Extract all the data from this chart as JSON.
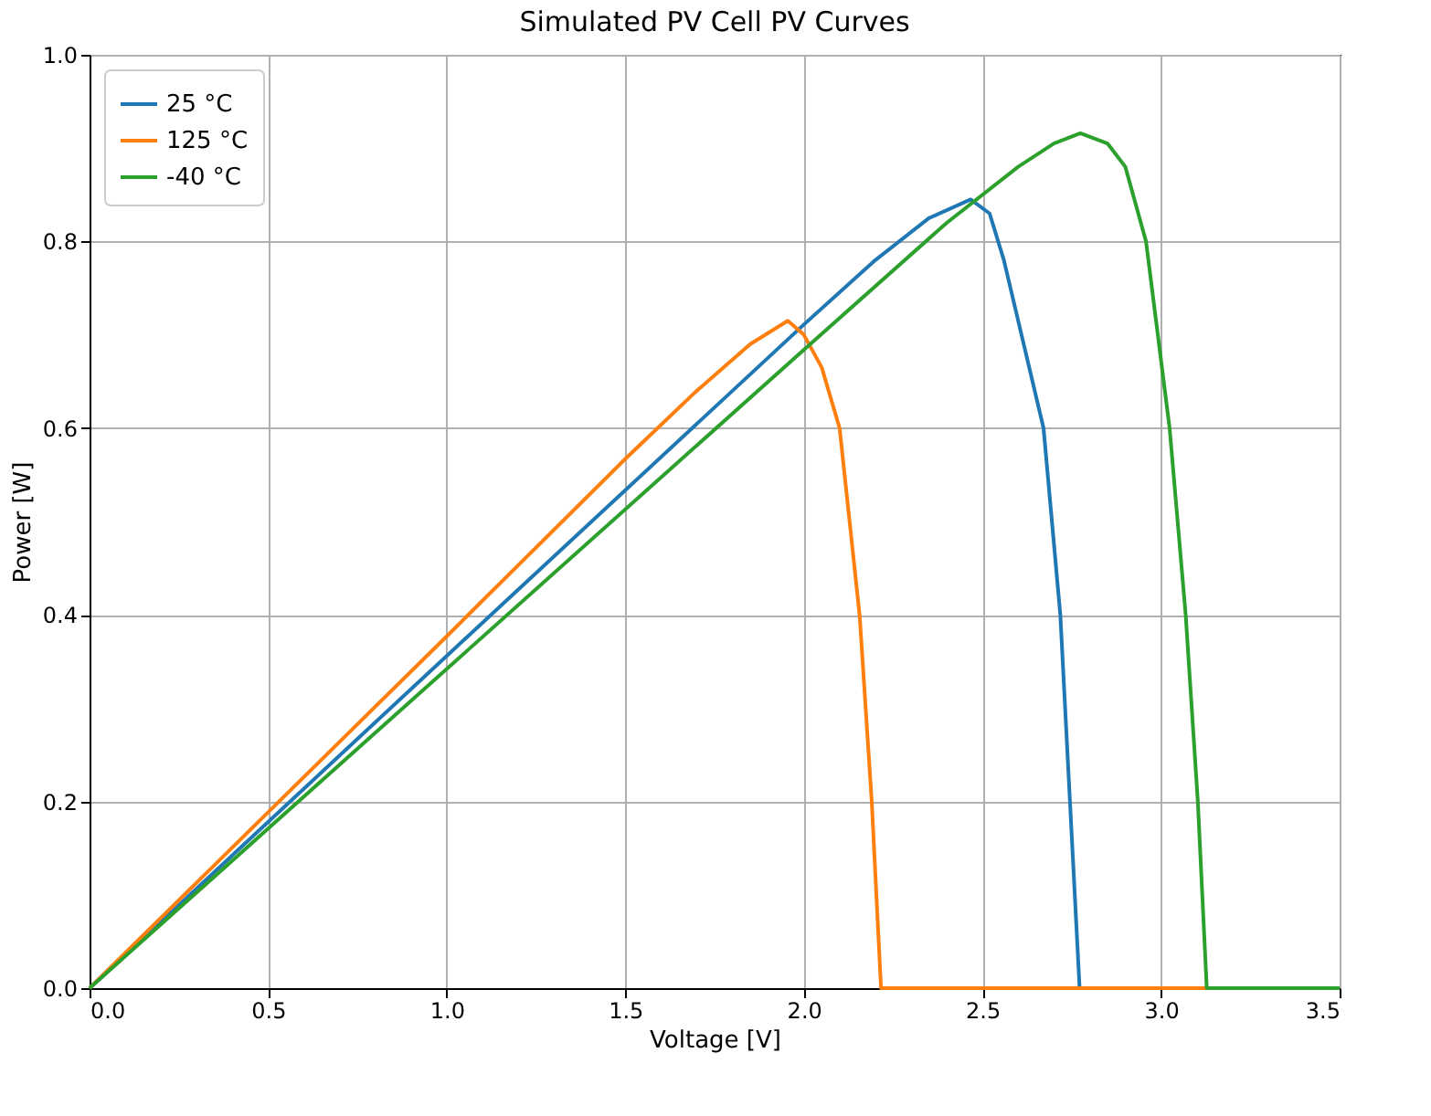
{
  "chart_data": {
    "type": "line",
    "title": "Simulated PV Cell PV Curves",
    "xlabel": "Voltage [V]",
    "ylabel": "Power [W]",
    "xlim": [
      0,
      3.5
    ],
    "ylim": [
      0,
      1.0
    ],
    "xticks": [
      {
        "value": 0,
        "label": "0.0"
      },
      0.5,
      {
        "value": 1,
        "label": "1.0"
      },
      1.5,
      {
        "value": 2,
        "label": "2.0"
      },
      2.5,
      {
        "value": 3,
        "label": "3.0"
      },
      3.5
    ],
    "yticks": [
      {
        "value": 0,
        "label": "0.0"
      },
      0.2,
      0.4,
      0.6,
      0.8,
      {
        "value": 1,
        "label": "1.0"
      }
    ],
    "grid": true,
    "legend": "top left",
    "marker": "none",
    "line_style": "solid",
    "series": [
      {
        "name": "25 °C",
        "color": "#1f77b4",
        "x": [
          0,
          1.0,
          2.0,
          2.2,
          2.35,
          2.467,
          2.52,
          2.56,
          2.671,
          2.718,
          2.745,
          2.772,
          3.5
        ],
        "values": [
          0,
          0.356,
          0.711,
          0.78,
          0.825,
          0.845,
          0.83,
          0.78,
          0.6,
          0.4,
          0.2,
          0,
          0
        ]
      },
      {
        "name": "125 °C",
        "color": "#ff7f0e",
        "x": [
          0,
          1.0,
          1.5,
          1.7,
          1.85,
          1.955,
          2.0,
          2.05,
          2.1,
          2.156,
          2.19,
          2.216,
          3.5
        ],
        "values": [
          0,
          0.377,
          0.567,
          0.64,
          0.69,
          0.715,
          0.7,
          0.665,
          0.6,
          0.4,
          0.2,
          0,
          0
        ]
      },
      {
        "name": "-40 °C",
        "color": "#2ca02c",
        "x": [
          0,
          1.0,
          2.0,
          2.4,
          2.6,
          2.7,
          2.774,
          2.85,
          2.9,
          2.958,
          3.024,
          3.069,
          3.103,
          3.128,
          3.5
        ],
        "values": [
          0,
          0.342,
          0.684,
          0.82,
          0.88,
          0.905,
          0.916,
          0.905,
          0.88,
          0.8,
          0.6,
          0.4,
          0.2,
          0,
          0
        ]
      }
    ]
  }
}
